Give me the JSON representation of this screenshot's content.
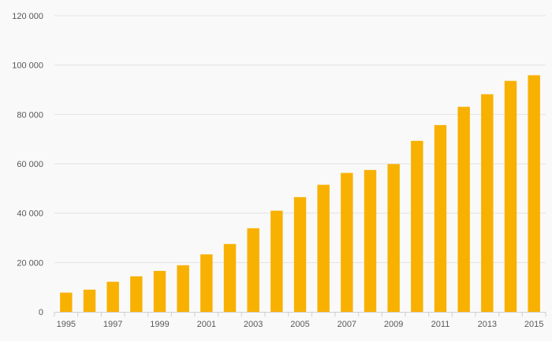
{
  "chart_data": {
    "type": "bar",
    "categories": [
      "1995",
      "1996",
      "1997",
      "1998",
      "1999",
      "2000",
      "2001",
      "2002",
      "2003",
      "2004",
      "2005",
      "2006",
      "2007",
      "2008",
      "2009",
      "2010",
      "2011",
      "2012",
      "2013",
      "2014",
      "2015"
    ],
    "values": [
      7800,
      9000,
      12200,
      14400,
      16600,
      18900,
      23300,
      27500,
      33900,
      41000,
      46500,
      51500,
      56300,
      57500,
      59900,
      69300,
      75700,
      83100,
      88200,
      93600,
      95900
    ],
    "x_tick_labels": [
      "1995",
      "1997",
      "1999",
      "2001",
      "2003",
      "2005",
      "2007",
      "2009",
      "2011",
      "2013",
      "2015"
    ],
    "y_ticks": [
      0,
      20000,
      40000,
      60000,
      80000,
      100000,
      120000
    ],
    "y_tick_labels": [
      "0",
      "20 000",
      "40 000",
      "60 000",
      "80 000",
      "100 000",
      "120 000"
    ],
    "ylim": [
      0,
      120000
    ],
    "bar_color": "#f8b100",
    "grid": true,
    "title": "",
    "xlabel": "",
    "ylabel": ""
  }
}
